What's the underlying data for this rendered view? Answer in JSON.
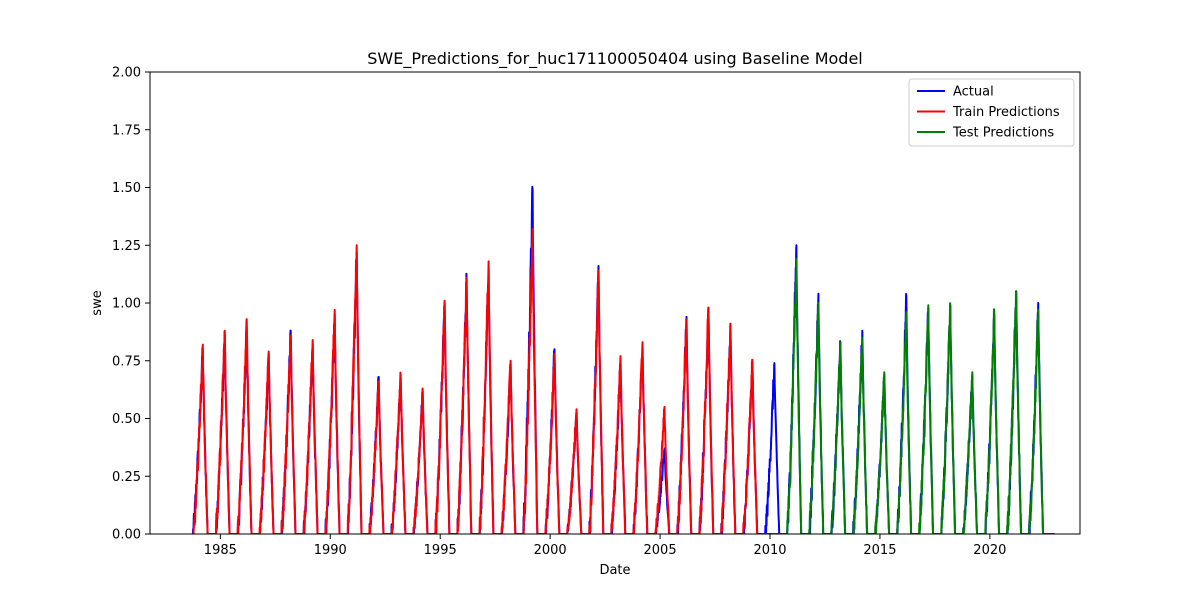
{
  "chart_data": {
    "type": "line",
    "title": "SWE_Predictions_for_huc171100050404 using Baseline Model",
    "xlabel": "Date",
    "ylabel": "swe",
    "xlim": [
      1981.8,
      2024.1
    ],
    "ylim": [
      0.0,
      2.0
    ],
    "x_ticks": [
      "1985",
      "1990",
      "1995",
      "2000",
      "2005",
      "2010",
      "2015",
      "2020"
    ],
    "y_ticks": [
      "0.00",
      "0.25",
      "0.50",
      "0.75",
      "1.00",
      "1.25",
      "1.50",
      "1.75",
      "2.00"
    ],
    "grid": false,
    "legend_position": "top-right",
    "series": [
      {
        "name": "Actual",
        "color": "#0000ff",
        "peaks": [
          {
            "year": 1984,
            "peak": 0.8
          },
          {
            "year": 1985,
            "peak": 0.86
          },
          {
            "year": 1986,
            "peak": 0.88
          },
          {
            "year": 1987,
            "peak": 0.78
          },
          {
            "year": 1988,
            "peak": 0.88
          },
          {
            "year": 1989,
            "peak": 0.82
          },
          {
            "year": 1990,
            "peak": 0.95
          },
          {
            "year": 1991,
            "peak": 1.22
          },
          {
            "year": 1992,
            "peak": 0.68
          },
          {
            "year": 1993,
            "peak": 0.68
          },
          {
            "year": 1994,
            "peak": 0.62
          },
          {
            "year": 1995,
            "peak": 1.0
          },
          {
            "year": 1996,
            "peak": 1.1
          },
          {
            "year": 1997,
            "peak": 1.15
          },
          {
            "year": 1998,
            "peak": 0.74
          },
          {
            "year": 1999,
            "peak": 1.49
          },
          {
            "year": 2000,
            "peak": 0.8
          },
          {
            "year": 2001,
            "peak": 0.53
          },
          {
            "year": 2002,
            "peak": 1.16
          },
          {
            "year": 2003,
            "peak": 0.75
          },
          {
            "year": 2004,
            "peak": 0.82
          },
          {
            "year": 2005,
            "peak": 0.37
          },
          {
            "year": 2006,
            "peak": 0.94
          },
          {
            "year": 2007,
            "peak": 0.98
          },
          {
            "year": 2008,
            "peak": 0.91
          },
          {
            "year": 2009,
            "peak": 0.74
          },
          {
            "year": 2010,
            "peak": 0.74
          },
          {
            "year": 2011,
            "peak": 1.25
          },
          {
            "year": 2012,
            "peak": 1.04
          },
          {
            "year": 2013,
            "peak": 0.83
          },
          {
            "year": 2014,
            "peak": 0.88
          },
          {
            "year": 2015,
            "peak": 0.69
          },
          {
            "year": 2016,
            "peak": 1.03
          },
          {
            "year": 2017,
            "peak": 0.98
          },
          {
            "year": 2018,
            "peak": 0.99
          },
          {
            "year": 2019,
            "peak": 0.69
          },
          {
            "year": 2020,
            "peak": 0.95
          },
          {
            "year": 2021,
            "peak": 1.05
          },
          {
            "year": 2022,
            "peak": 1.0
          }
        ]
      },
      {
        "name": "Train Predictions",
        "color": "#ff0000",
        "peaks": [
          {
            "year": 1984,
            "peak": 0.82
          },
          {
            "year": 1985,
            "peak": 0.88
          },
          {
            "year": 1986,
            "peak": 0.93
          },
          {
            "year": 1987,
            "peak": 0.79
          },
          {
            "year": 1988,
            "peak": 0.86
          },
          {
            "year": 1989,
            "peak": 0.84
          },
          {
            "year": 1990,
            "peak": 0.97
          },
          {
            "year": 1991,
            "peak": 1.25
          },
          {
            "year": 1992,
            "peak": 0.66
          },
          {
            "year": 1993,
            "peak": 0.69
          },
          {
            "year": 1994,
            "peak": 0.63
          },
          {
            "year": 1995,
            "peak": 1.01
          },
          {
            "year": 1996,
            "peak": 1.11
          },
          {
            "year": 1997,
            "peak": 1.18
          },
          {
            "year": 1998,
            "peak": 0.75
          },
          {
            "year": 1999,
            "peak": 1.32
          },
          {
            "year": 2000,
            "peak": 0.78
          },
          {
            "year": 2001,
            "peak": 0.54
          },
          {
            "year": 2002,
            "peak": 1.14
          },
          {
            "year": 2003,
            "peak": 0.77
          },
          {
            "year": 2004,
            "peak": 0.83
          },
          {
            "year": 2005,
            "peak": 0.55
          },
          {
            "year": 2006,
            "peak": 0.92
          },
          {
            "year": 2007,
            "peak": 0.98
          },
          {
            "year": 2008,
            "peak": 0.91
          },
          {
            "year": 2009,
            "peak": 0.75
          }
        ]
      },
      {
        "name": "Test Predictions",
        "color": "#008000",
        "peaks": [
          {
            "year": 2011,
            "peak": 1.19
          },
          {
            "year": 2012,
            "peak": 1.0
          },
          {
            "year": 2013,
            "peak": 0.83
          },
          {
            "year": 2014,
            "peak": 0.85
          },
          {
            "year": 2015,
            "peak": 0.7
          },
          {
            "year": 2016,
            "peak": 0.96
          },
          {
            "year": 2017,
            "peak": 0.99
          },
          {
            "year": 2018,
            "peak": 0.99
          },
          {
            "year": 2019,
            "peak": 0.7
          },
          {
            "year": 2020,
            "peak": 0.96
          },
          {
            "year": 2021,
            "peak": 1.05
          },
          {
            "year": 2022,
            "peak": 0.97
          }
        ]
      }
    ]
  }
}
